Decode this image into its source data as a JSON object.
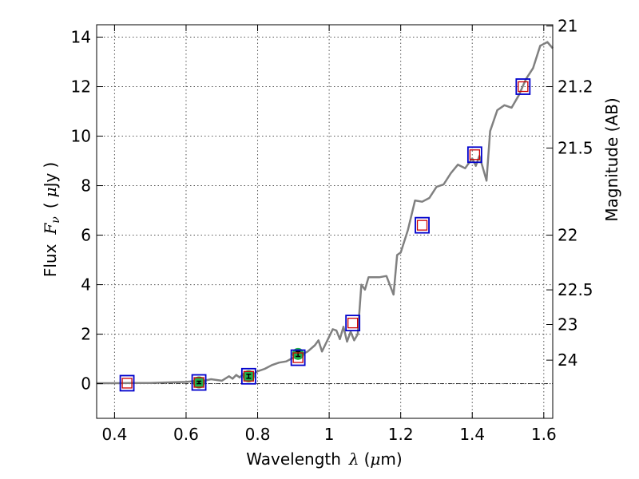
{
  "chart_data": {
    "type": "scatter",
    "xlabel": {
      "text": "Wavelength",
      "symbol": "λ",
      "unit_open": "(",
      "unit_mu": "μ",
      "unit_rest": "m)"
    },
    "ylabel": {
      "text": "Flux",
      "symbol": "F",
      "subscript": "ν",
      "unit_open": "(",
      "unit_mu": "μ",
      "unit_rest": "Jy",
      "unit_close": ")"
    },
    "y2label": "Magnitude (AB)",
    "xlim": [
      0.35,
      1.625
    ],
    "ylim": [
      -1.4,
      14.5
    ],
    "grid": true,
    "xticks": [
      {
        "value": 0.4,
        "label": "0.4"
      },
      {
        "value": 0.6,
        "label": "0.6"
      },
      {
        "value": 0.8,
        "label": "0.8"
      },
      {
        "value": 1.0,
        "label": "1"
      },
      {
        "value": 1.2,
        "label": "1.2"
      },
      {
        "value": 1.4,
        "label": "1.4"
      },
      {
        "value": 1.6,
        "label": "1.6"
      }
    ],
    "yticks": [
      {
        "value": 0,
        "label": "0"
      },
      {
        "value": 2,
        "label": "2"
      },
      {
        "value": 4,
        "label": "4"
      },
      {
        "value": 6,
        "label": "6"
      },
      {
        "value": 8,
        "label": "8"
      },
      {
        "value": 10,
        "label": "10"
      },
      {
        "value": 12,
        "label": "12"
      },
      {
        "value": 14,
        "label": "14"
      }
    ],
    "y2ticks": [
      {
        "flux": 14.45,
        "label": "21"
      },
      {
        "flux": 12.0,
        "label": "21.2"
      },
      {
        "flux": 9.52,
        "label": "21.5"
      },
      {
        "flux": 6.0,
        "label": "22"
      },
      {
        "flux": 3.79,
        "label": "22.5"
      },
      {
        "flux": 2.39,
        "label": "23"
      },
      {
        "flux": 0.95,
        "label": "24"
      }
    ],
    "series": [
      {
        "kind": "model_spectrum",
        "color": "#808080",
        "x": [
          0.35,
          0.4,
          0.45,
          0.5,
          0.55,
          0.6,
          0.62,
          0.65,
          0.67,
          0.7,
          0.72,
          0.73,
          0.74,
          0.75,
          0.76,
          0.78,
          0.8,
          0.82,
          0.84,
          0.86,
          0.88,
          0.9,
          0.92,
          0.94,
          0.96,
          0.97,
          0.98,
          0.99,
          1.0,
          1.01,
          1.02,
          1.03,
          1.04,
          1.05,
          1.06,
          1.07,
          1.08,
          1.09,
          1.1,
          1.11,
          1.12,
          1.14,
          1.16,
          1.18,
          1.19,
          1.2,
          1.22,
          1.24,
          1.26,
          1.28,
          1.3,
          1.32,
          1.34,
          1.36,
          1.38,
          1.4,
          1.41,
          1.42,
          1.43,
          1.44,
          1.45,
          1.47,
          1.49,
          1.51,
          1.53,
          1.55,
          1.57,
          1.59,
          1.61,
          1.625
        ],
        "y": [
          0.02,
          0.02,
          0.03,
          0.03,
          0.05,
          0.07,
          0.1,
          0.12,
          0.18,
          0.12,
          0.3,
          0.2,
          0.35,
          0.25,
          0.4,
          0.3,
          0.5,
          0.6,
          0.75,
          0.85,
          0.9,
          1.05,
          1.15,
          1.3,
          1.55,
          1.75,
          1.3,
          1.6,
          1.9,
          2.2,
          2.15,
          1.8,
          2.3,
          1.7,
          2.1,
          1.75,
          2.0,
          4.0,
          3.8,
          4.3,
          4.3,
          4.3,
          4.35,
          3.6,
          5.2,
          5.3,
          6.2,
          7.4,
          7.35,
          7.5,
          7.95,
          8.05,
          8.5,
          8.85,
          8.7,
          9.1,
          8.8,
          9.2,
          8.7,
          8.2,
          10.2,
          11.05,
          11.25,
          11.15,
          11.65,
          12.3,
          12.75,
          13.65,
          13.8,
          13.55
        ]
      },
      {
        "kind": "observed_photometry",
        "color": "#22b14c",
        "x": [
          0.636,
          0.775,
          0.913
        ],
        "y": [
          0.05,
          0.3,
          1.2
        ],
        "yerr": [
          0.05,
          0.08,
          0.1
        ]
      },
      {
        "kind": "model_photometry",
        "color": "#cc0000",
        "x": [
          0.435,
          0.636,
          0.775,
          0.913,
          1.066,
          1.26,
          1.407,
          1.542
        ],
        "y": [
          0.02,
          0.05,
          0.3,
          1.05,
          2.45,
          6.4,
          9.25,
          12.0
        ]
      },
      {
        "kind": "filter_photometry",
        "color": "#0000cc",
        "x": [
          0.435,
          0.636,
          0.775,
          0.913,
          1.066,
          1.26,
          1.407,
          1.542
        ],
        "y": [
          0.02,
          0.05,
          0.3,
          1.05,
          2.45,
          6.4,
          9.25,
          12.0
        ]
      }
    ]
  }
}
